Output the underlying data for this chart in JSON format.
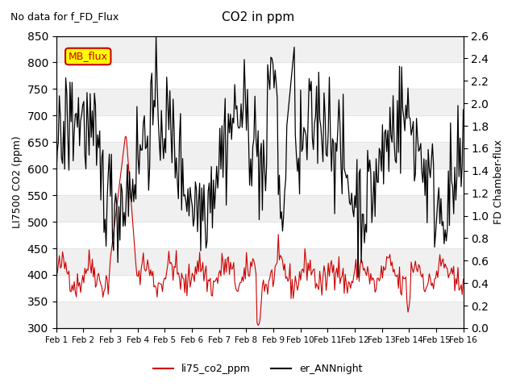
{
  "title": "CO2 in ppm",
  "subtitle": "No data for f_FD_Flux",
  "ylabel_left": "LI7500 CO2 (ppm)",
  "ylabel_right": "FD Chamber-flux",
  "ylim_left": [
    300,
    850
  ],
  "ylim_right": [
    0.0,
    2.6
  ],
  "yticks_left": [
    300,
    350,
    400,
    450,
    500,
    550,
    600,
    650,
    700,
    750,
    800,
    850
  ],
  "yticks_right": [
    0.0,
    0.2,
    0.4,
    0.6,
    0.8,
    1.0,
    1.2,
    1.4,
    1.6,
    1.8,
    2.0,
    2.2,
    2.4,
    2.6
  ],
  "xticklabels": [
    "Feb 1",
    "Feb 2",
    "Feb 3",
    "Feb 4",
    "Feb 5",
    "Feb 6",
    "Feb 7",
    "Feb 8",
    "Feb 9",
    "Feb 10",
    "Feb 11",
    "Feb 12",
    "Feb 13",
    "Feb 14",
    "Feb 15",
    "Feb 16"
  ],
  "legend_entries": [
    "li75_co2_ppm",
    "er_ANNnight"
  ],
  "legend_colors": [
    "#cc0000",
    "#000000"
  ],
  "line_color_red": "#cc0000",
  "line_color_black": "#000000",
  "mb_flux_box_color": "#ffff00",
  "mb_flux_text_color": "#cc0000",
  "background_color": "#ffffff",
  "grid_color": "#e0e0e0",
  "n_points": 384
}
